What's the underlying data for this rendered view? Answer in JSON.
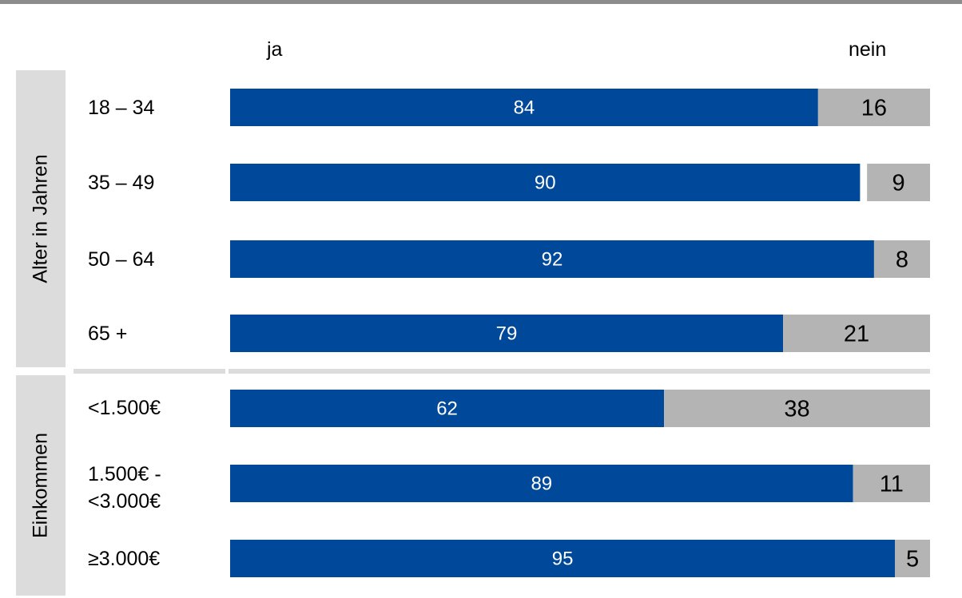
{
  "chart_data": {
    "type": "bar",
    "orientation": "horizontal",
    "stacked": true,
    "percent_scale": true,
    "legend": [
      "ja",
      "nein"
    ],
    "colors": {
      "ja": "#004899",
      "nein": "#b4b4b4",
      "group_background": "#dcdcdc",
      "rule": "#8c8c8c"
    },
    "groups": [
      {
        "label": "Alter in Jahren",
        "rows": [
          {
            "label": "18 – 34",
            "ja": 84,
            "nein": 16
          },
          {
            "label": "35 – 49",
            "ja": 90,
            "nein": 9
          },
          {
            "label": "50 – 64",
            "ja": 92,
            "nein": 8
          },
          {
            "label": "65 +",
            "ja": 79,
            "nein": 21
          }
        ]
      },
      {
        "label": "Einkommen",
        "rows": [
          {
            "label": "<1.500€",
            "ja": 62,
            "nein": 38
          },
          {
            "label": "1.500€ -\n<3.000€",
            "ja": 89,
            "nein": 11
          },
          {
            "label": "≥3.000€",
            "ja": 95,
            "nein": 5
          }
        ]
      }
    ]
  }
}
